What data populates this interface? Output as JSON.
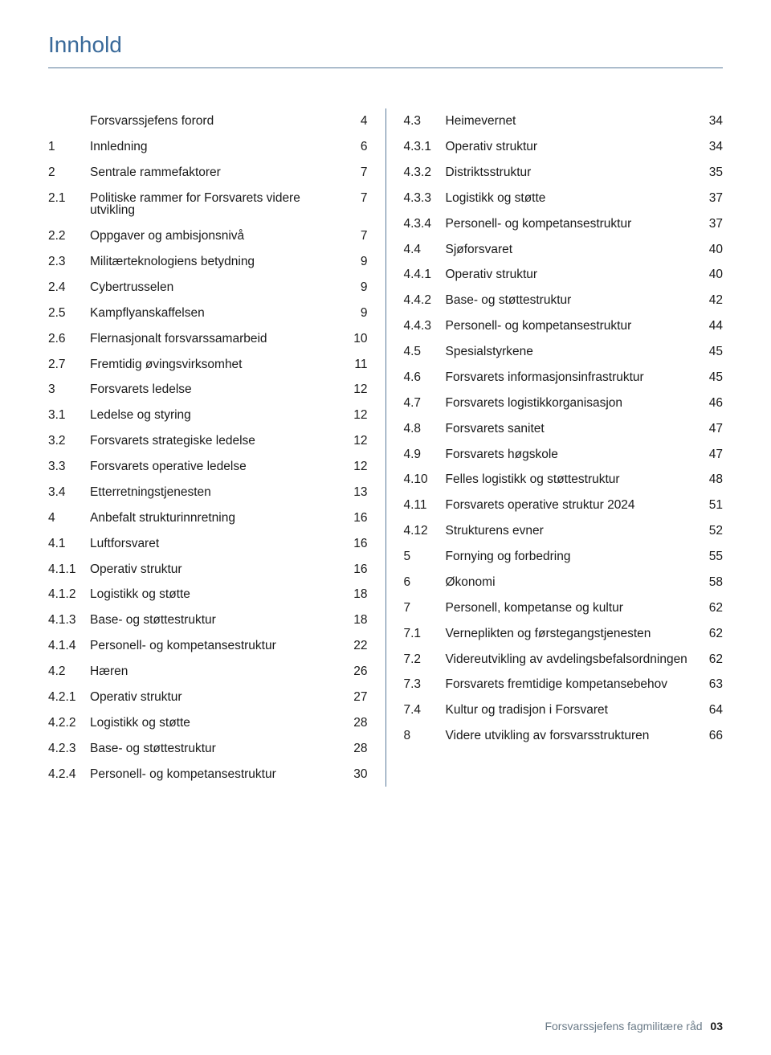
{
  "title": "Innhold",
  "title_color": "#3a6a9a",
  "rule_color": "#5a7a9a",
  "text_color": "#1a1a1a",
  "font_size_title": 28,
  "font_size_body": 15.5,
  "left": [
    {
      "num": "",
      "title": "Forsvarssjefens forord",
      "page": "4"
    },
    {
      "num": "1",
      "title": "Innledning",
      "page": "6"
    },
    {
      "num": "2",
      "title": "Sentrale rammefaktorer",
      "page": "7"
    },
    {
      "num": "2.1",
      "title": "Politiske rammer for Forsvarets videre utvikling",
      "page": "7"
    },
    {
      "num": "2.2",
      "title": "Oppgaver og ambisjonsnivå",
      "page": "7"
    },
    {
      "num": "2.3",
      "title": "Militærteknologiens betydning",
      "page": "9"
    },
    {
      "num": "2.4",
      "title": "Cybertrusselen",
      "page": "9"
    },
    {
      "num": "2.5",
      "title": "Kampflyanskaffelsen",
      "page": "9"
    },
    {
      "num": "2.6",
      "title": "Flernasjonalt forsvarssamarbeid",
      "page": "10"
    },
    {
      "num": "2.7",
      "title": "Fremtidig øvingsvirksomhet",
      "page": "11"
    },
    {
      "num": "3",
      "title": "Forsvarets ledelse",
      "page": "12"
    },
    {
      "num": "3.1",
      "title": "Ledelse og styring",
      "page": "12"
    },
    {
      "num": "3.2",
      "title": "Forsvarets strategiske ledelse",
      "page": "12"
    },
    {
      "num": "3.3",
      "title": "Forsvarets operative ledelse",
      "page": "12"
    },
    {
      "num": "3.4",
      "title": "Etterretningstjenesten",
      "page": "13"
    },
    {
      "num": "4",
      "title": "Anbefalt strukturinnretning",
      "page": "16"
    },
    {
      "num": "4.1",
      "title": "Luftforsvaret",
      "page": "16"
    },
    {
      "num": "4.1.1",
      "title": "Operativ struktur",
      "page": "16"
    },
    {
      "num": "4.1.2",
      "title": "Logistikk og støtte",
      "page": "18"
    },
    {
      "num": "4.1.3",
      "title": "Base- og støttestruktur",
      "page": "18"
    },
    {
      "num": "4.1.4",
      "title": "Personell- og kompetansestruktur",
      "page": "22"
    },
    {
      "num": "4.2",
      "title": "Hæren",
      "page": "26"
    },
    {
      "num": "4.2.1",
      "title": "Operativ struktur",
      "page": "27"
    },
    {
      "num": "4.2.2",
      "title": "Logistikk og støtte",
      "page": "28"
    },
    {
      "num": "4.2.3",
      "title": "Base- og støttestruktur",
      "page": "28"
    },
    {
      "num": "4.2.4",
      "title": "Personell- og kompetansestruktur",
      "page": "30"
    }
  ],
  "right": [
    {
      "num": "4.3",
      "title": "Heimevernet",
      "page": "34"
    },
    {
      "num": "4.3.1",
      "title": "Operativ struktur",
      "page": "34"
    },
    {
      "num": "4.3.2",
      "title": "Distriktsstruktur",
      "page": "35"
    },
    {
      "num": "4.3.3",
      "title": "Logistikk og støtte",
      "page": "37"
    },
    {
      "num": "4.3.4",
      "title": "Personell- og kompetansestruktur",
      "page": "37"
    },
    {
      "num": "4.4",
      "title": "Sjøforsvaret",
      "page": "40"
    },
    {
      "num": "4.4.1",
      "title": "Operativ struktur",
      "page": "40"
    },
    {
      "num": "4.4.2",
      "title": "Base- og støttestruktur",
      "page": "42"
    },
    {
      "num": "4.4.3",
      "title": "Personell- og kompetansestruktur",
      "page": "44"
    },
    {
      "num": "4.5",
      "title": "Spesialstyrkene",
      "page": "45"
    },
    {
      "num": "4.6",
      "title": "Forsvarets informasjonsinfrastruktur",
      "page": "45"
    },
    {
      "num": "4.7",
      "title": "Forsvarets logistikkorganisasjon",
      "page": "46"
    },
    {
      "num": "4.8",
      "title": "Forsvarets sanitet",
      "page": "47"
    },
    {
      "num": "4.9",
      "title": "Forsvarets høgskole",
      "page": "47"
    },
    {
      "num": "4.10",
      "title": "Felles logistikk og støttestruktur",
      "page": "48"
    },
    {
      "num": "4.11",
      "title": "Forsvarets operative struktur 2024",
      "page": "51"
    },
    {
      "num": "4.12",
      "title": "Strukturens evner",
      "page": "52"
    },
    {
      "num": "5",
      "title": "Fornying og forbedring",
      "page": "55"
    },
    {
      "num": "6",
      "title": "Økonomi",
      "page": "58"
    },
    {
      "num": "7",
      "title": "Personell, kompetanse og kultur",
      "page": "62"
    },
    {
      "num": "7.1",
      "title": "Verneplikten og førstegangstjenesten",
      "page": "62"
    },
    {
      "num": "7.2",
      "title": "Videreutvikling av avdelingsbefalsordningen",
      "page": "62"
    },
    {
      "num": "7.3",
      "title": "Forsvarets fremtidige kompetansebehov",
      "page": "63"
    },
    {
      "num": "7.4",
      "title": "Kultur og tradisjon i Forsvaret",
      "page": "64"
    },
    {
      "num": "8",
      "title": "Videre utvikling av forsvarsstrukturen",
      "page": "66"
    }
  ],
  "footer": {
    "text": "Forsvarssjefens fagmilitære råd",
    "page_number": "03"
  }
}
